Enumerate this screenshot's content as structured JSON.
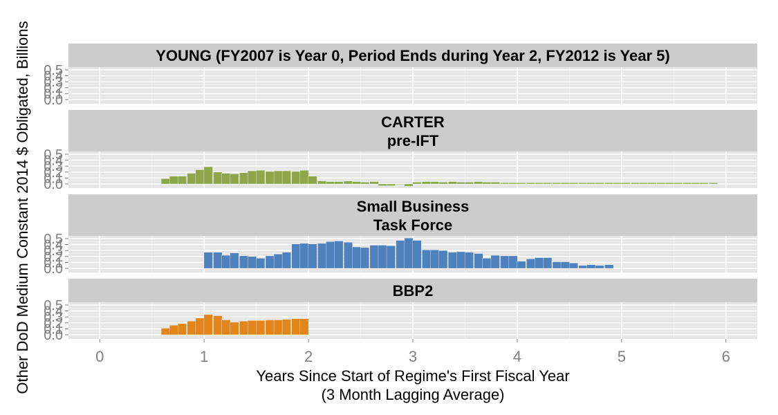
{
  "chart_data": {
    "type": "bar",
    "xlabel": "Years Since Start of Regime's First Fiscal Year",
    "xlabel_line2": "(3 Month Lagging Average)",
    "ylabel": "Other DoD Medium Constant 2014 $ Obligated, Billions",
    "xlim": [
      -0.3,
      6.3
    ],
    "x_ticks": [
      0,
      1,
      2,
      3,
      4,
      5,
      6
    ],
    "ylim": [
      0,
      0.5
    ],
    "y_ticks": [
      0.0,
      0.1,
      0.2,
      0.3,
      0.4,
      0.5
    ],
    "y_tick_labels": [
      "0.0",
      "0.1",
      "0.2",
      "0.3",
      "0.4",
      "0.5"
    ],
    "bar_width": 0.0833,
    "panels": [
      {
        "title": "YOUNG (FY2007 is Year 0, Period Ends during Year 2, FY2012 is Year 5)",
        "title_line2": "",
        "color": "#8da14e",
        "x": [],
        "values": []
      },
      {
        "title": "CARTER",
        "title_line2": "pre-IFT",
        "color": "#8da64a",
        "x": [
          0.63,
          0.71,
          0.79,
          0.88,
          0.96,
          1.04,
          1.13,
          1.21,
          1.29,
          1.38,
          1.46,
          1.54,
          1.63,
          1.71,
          1.79,
          1.88,
          1.96,
          2.04,
          2.13,
          2.21,
          2.29,
          2.38,
          2.46,
          2.54,
          2.63,
          2.71,
          2.79,
          2.88,
          2.96,
          3.04,
          3.13,
          3.21,
          3.29,
          3.38,
          3.46,
          3.54,
          3.63,
          3.71,
          3.79,
          3.88,
          3.96,
          4.04,
          4.13,
          4.21,
          4.29,
          4.38,
          4.46,
          4.54,
          4.63,
          4.71,
          4.79,
          4.88,
          4.96,
          5.04,
          5.13,
          5.21,
          5.29,
          5.38,
          5.46,
          5.54,
          5.63,
          5.71,
          5.79,
          5.88
        ],
        "values": [
          0.09,
          0.13,
          0.13,
          0.18,
          0.24,
          0.29,
          0.2,
          0.18,
          0.17,
          0.19,
          0.22,
          0.23,
          0.21,
          0.22,
          0.22,
          0.21,
          0.23,
          0.13,
          0.05,
          0.04,
          0.04,
          0.05,
          0.04,
          0.03,
          0.04,
          -0.03,
          -0.03,
          -0.01,
          -0.04,
          0.03,
          0.04,
          0.04,
          0.03,
          0.04,
          0.03,
          0.03,
          0.04,
          0.03,
          0.03,
          0.02,
          0.02,
          0.02,
          0.02,
          0.02,
          0.02,
          0.02,
          0.02,
          0.02,
          0.02,
          0.02,
          0.02,
          0.02,
          0.02,
          0.02,
          0.02,
          0.02,
          0.02,
          0.02,
          0.02,
          0.02,
          0.02,
          0.02,
          0.02,
          0.02
        ]
      },
      {
        "title": "Small Business",
        "title_line2": "Task Force",
        "color": "#4f81bd",
        "x": [
          1.04,
          1.13,
          1.21,
          1.29,
          1.38,
          1.46,
          1.54,
          1.63,
          1.71,
          1.79,
          1.88,
          1.96,
          2.04,
          2.13,
          2.21,
          2.29,
          2.38,
          2.46,
          2.54,
          2.63,
          2.71,
          2.79,
          2.88,
          2.96,
          3.04,
          3.13,
          3.21,
          3.29,
          3.38,
          3.46,
          3.54,
          3.63,
          3.71,
          3.79,
          3.88,
          3.96,
          4.04,
          4.13,
          4.21,
          4.29,
          4.38,
          4.46,
          4.54,
          4.63,
          4.71,
          4.79,
          4.88
        ],
        "values": [
          0.27,
          0.27,
          0.22,
          0.26,
          0.21,
          0.2,
          0.17,
          0.21,
          0.24,
          0.27,
          0.41,
          0.42,
          0.41,
          0.42,
          0.45,
          0.46,
          0.44,
          0.36,
          0.35,
          0.39,
          0.39,
          0.38,
          0.47,
          0.51,
          0.47,
          0.31,
          0.31,
          0.3,
          0.27,
          0.28,
          0.27,
          0.25,
          0.17,
          0.22,
          0.21,
          0.21,
          0.12,
          0.16,
          0.18,
          0.18,
          0.11,
          0.11,
          0.09,
          0.05,
          0.06,
          0.05,
          0.06
        ]
      },
      {
        "title": "BBP2",
        "title_line2": "",
        "color": "#e2861c",
        "x": [
          0.63,
          0.71,
          0.79,
          0.88,
          0.96,
          1.04,
          1.13,
          1.21,
          1.29,
          1.38,
          1.46,
          1.54,
          1.63,
          1.71,
          1.79,
          1.88,
          1.96
        ],
        "values": [
          0.11,
          0.16,
          0.19,
          0.23,
          0.28,
          0.34,
          0.32,
          0.25,
          0.21,
          0.23,
          0.24,
          0.24,
          0.25,
          0.25,
          0.26,
          0.27,
          0.27
        ]
      }
    ]
  }
}
